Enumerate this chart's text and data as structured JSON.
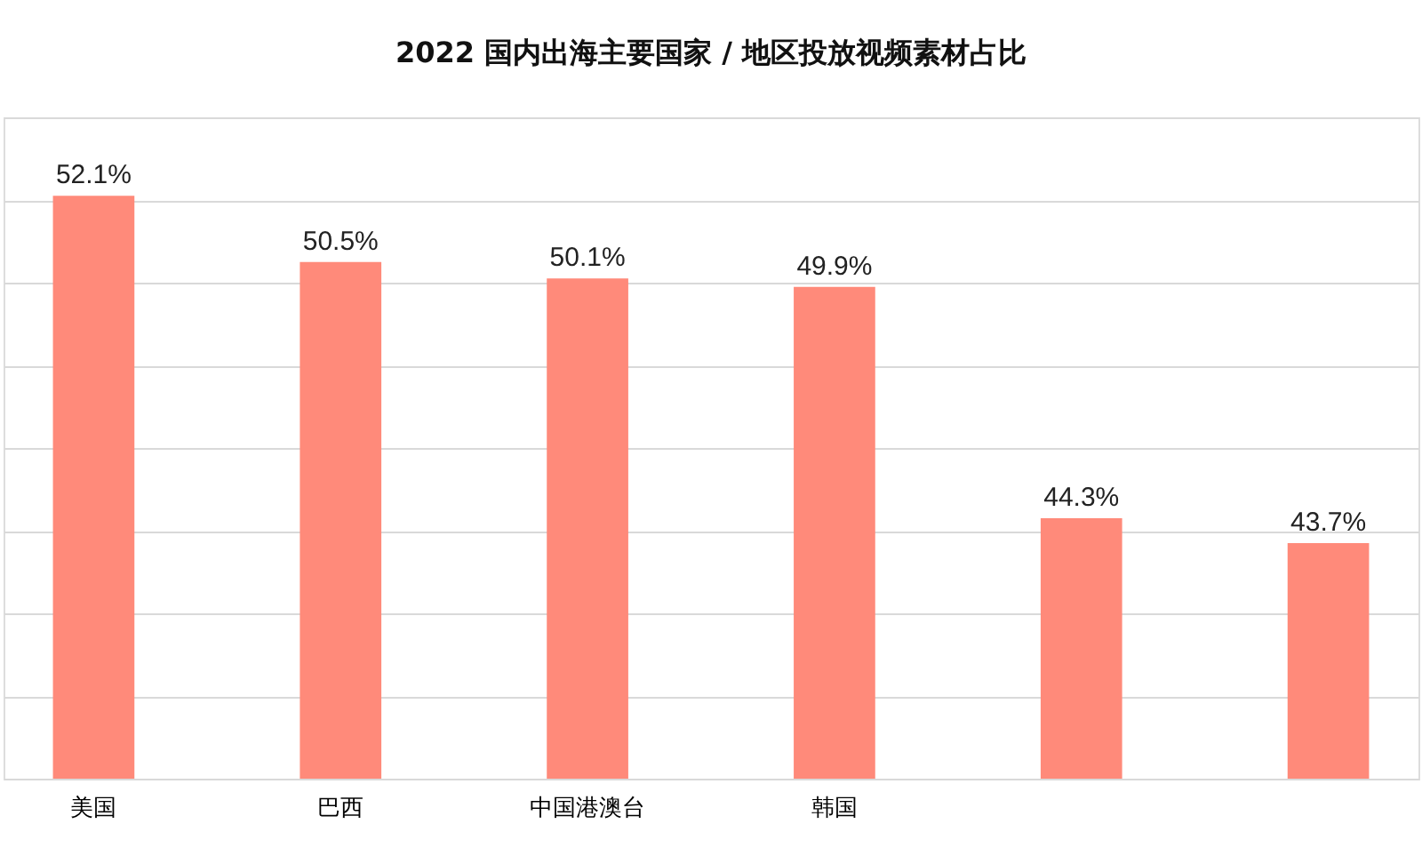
{
  "chart_data": {
    "type": "bar",
    "title": "2022 国内出海主要国家 / 地区投放视频素材占比",
    "categories": [
      "美国",
      "巴西",
      "中国港澳台",
      "韩国",
      null,
      null
    ],
    "values": [
      52.1,
      50.5,
      50.1,
      49.9,
      44.3,
      43.7
    ],
    "value_labels": [
      "52.1%",
      "50.5%",
      "50.1%",
      "49.9%",
      "44.3%",
      "43.7%"
    ],
    "color": "#ff8a7a",
    "ylim": [
      38,
      54
    ],
    "yticks": [
      {
        "value": 38,
        "label": null
      },
      {
        "value": 40,
        "label": null
      },
      {
        "value": 42,
        "label": null
      },
      {
        "value": 44,
        "label": null
      },
      {
        "value": 46,
        "label": null
      },
      {
        "value": 48,
        "label": null
      },
      {
        "value": 50,
        "label": null
      },
      {
        "value": 52,
        "label": null
      },
      {
        "value": 54,
        "label": null
      }
    ],
    "grid": "y",
    "tick_labels": "x"
  }
}
